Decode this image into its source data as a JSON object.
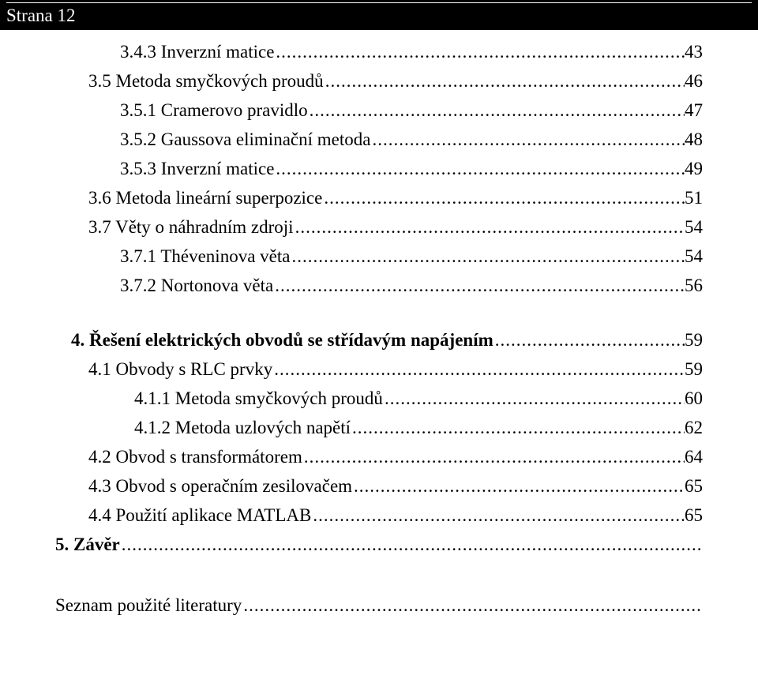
{
  "header": {
    "page_label": "Strana 12"
  },
  "toc": [
    {
      "indent": "indent-2",
      "label": "3.4.3 Inverzní matice",
      "page": "43",
      "bold": false
    },
    {
      "indent": "indent-1",
      "label": "3.5 Metoda smyčkových proudů",
      "page": "46",
      "bold": false
    },
    {
      "indent": "indent-2",
      "label": "3.5.1 Cramerovo pravidlo",
      "page": "47",
      "bold": false
    },
    {
      "indent": "indent-2",
      "label": "3.5.2 Gaussova eliminační metoda",
      "page": "48",
      "bold": false
    },
    {
      "indent": "indent-2",
      "label": "3.5.3 Inverzní matice",
      "page": "49",
      "bold": false
    },
    {
      "indent": "indent-1",
      "label": "3.6 Metoda lineární superpozice",
      "page": "51",
      "bold": false
    },
    {
      "indent": "indent-1",
      "label": "3.7 Věty o náhradním zdroji",
      "page": "54",
      "bold": false
    },
    {
      "indent": "indent-2",
      "label": "3.7.1 Théveninova věta",
      "page": "54",
      "bold": false
    },
    {
      "indent": "indent-2",
      "label": "3.7.2 Nortonova věta",
      "page": "56",
      "bold": false
    }
  ],
  "chapter4": {
    "indent": "indent-hanging",
    "label": "4. Řešení elektrických obvodů se střídavým napájením",
    "page": "59"
  },
  "toc4": [
    {
      "indent": "indent-1",
      "label": "4.1 Obvody s RLC prvky",
      "page": "59",
      "bold": false
    },
    {
      "indent": "indent-3",
      "label": "4.1.1 Metoda smyčkových proudů",
      "page": "60",
      "bold": false
    },
    {
      "indent": "indent-3",
      "label": "4.1.2 Metoda uzlových napětí",
      "page": "62",
      "bold": false
    },
    {
      "indent": "indent-1",
      "label": "4.2 Obvod s transformátorem",
      "page": "64",
      "bold": false
    },
    {
      "indent": "indent-1",
      "label": "4.3 Obvod s operačním zesilovačem",
      "page": "65",
      "bold": false
    },
    {
      "indent": "indent-1",
      "label": "4.4 Použití aplikace MATLAB",
      "page": "65",
      "bold": false
    }
  ],
  "zaver": {
    "indent": "indent-0",
    "label": "5. Závěr",
    "page": ""
  },
  "literature": {
    "indent": "indent-0",
    "label": "Seznam použité literatury",
    "page": ""
  }
}
